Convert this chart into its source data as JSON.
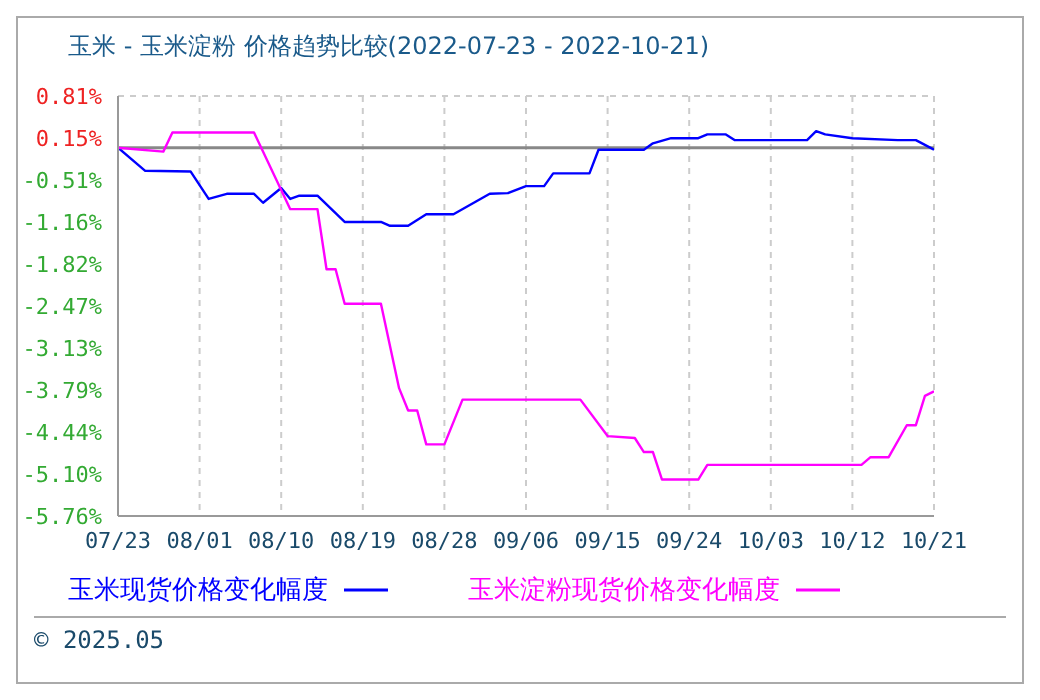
{
  "chart_data": {
    "type": "line",
    "title": "玉米 - 玉米淀粉 价格趋势比较(2022-07-23 - 2022-10-21)",
    "xlim": [
      "2022-07-23",
      "2022-10-21"
    ],
    "xticks": [
      {
        "value": "2022-07-23",
        "label": "07/23"
      },
      {
        "value": "2022-08-01",
        "label": "08/01"
      },
      {
        "value": "2022-08-10",
        "label": "08/10"
      },
      {
        "value": "2022-08-19",
        "label": "08/19"
      },
      {
        "value": "2022-08-28",
        "label": "08/28"
      },
      {
        "value": "2022-09-06",
        "label": "09/06"
      },
      {
        "value": "2022-09-15",
        "label": "09/15"
      },
      {
        "value": "2022-09-24",
        "label": "09/24"
      },
      {
        "value": "2022-10-03",
        "label": "10/03"
      },
      {
        "value": "2022-10-12",
        "label": "10/12"
      },
      {
        "value": "2022-10-21",
        "label": "10/21"
      }
    ],
    "ylim": [
      -5.76,
      0.81
    ],
    "yticks": [
      {
        "value": 0.81,
        "label": "0.81%"
      },
      {
        "value": 0.15,
        "label": "0.15%"
      },
      {
        "value": -0.51,
        "label": "-0.51%"
      },
      {
        "value": -1.16,
        "label": "-1.16%"
      },
      {
        "value": -1.82,
        "label": "-1.82%"
      },
      {
        "value": -2.47,
        "label": "-2.47%"
      },
      {
        "value": -3.13,
        "label": "-3.13%"
      },
      {
        "value": -3.79,
        "label": "-3.79%"
      },
      {
        "value": -4.44,
        "label": "-4.44%"
      },
      {
        "value": -5.1,
        "label": "-5.10%"
      },
      {
        "value": -5.76,
        "label": "-5.76%"
      }
    ],
    "grid": true,
    "legend": "bottom",
    "marker": "none",
    "line_style": "solid",
    "ref_lines": [
      {
        "axis": "y",
        "value": 0,
        "color": "#888888"
      }
    ],
    "annotations": [
      "© 2025.05"
    ],
    "series": [
      {
        "name": "玉米现货价格变化幅度",
        "color": "#0000ff",
        "x": [
          "2022-07-23",
          "2022-07-26",
          "2022-07-31",
          "2022-08-02",
          "2022-08-04",
          "2022-08-07",
          "2022-08-08",
          "2022-08-10",
          "2022-08-11",
          "2022-08-12",
          "2022-08-14",
          "2022-08-17",
          "2022-08-21",
          "2022-08-22",
          "2022-08-24",
          "2022-08-26",
          "2022-08-29",
          "2022-09-02",
          "2022-09-04",
          "2022-09-06",
          "2022-09-08",
          "2022-09-09",
          "2022-09-13",
          "2022-09-14",
          "2022-09-19",
          "2022-09-20",
          "2022-09-22",
          "2022-09-25",
          "2022-09-26",
          "2022-09-28",
          "2022-09-29",
          "2022-10-07",
          "2022-10-08",
          "2022-10-09",
          "2022-10-12",
          "2022-10-17",
          "2022-10-19",
          "2022-10-21"
        ],
        "values": [
          0,
          -0.36,
          -0.37,
          -0.8,
          -0.72,
          -0.72,
          -0.86,
          -0.63,
          -0.8,
          -0.75,
          -0.75,
          -1.16,
          -1.16,
          -1.22,
          -1.22,
          -1.04,
          -1.04,
          -0.72,
          -0.71,
          -0.6,
          -0.6,
          -0.4,
          -0.4,
          -0.03,
          -0.03,
          0.07,
          0.15,
          0.15,
          0.21,
          0.21,
          0.12,
          0.12,
          0.26,
          0.21,
          0.15,
          0.12,
          0.12,
          -0.03
        ]
      },
      {
        "name": "玉米淀粉现货价格变化幅度",
        "color": "#ff00ff",
        "x": [
          "2022-07-23",
          "2022-07-28",
          "2022-07-29",
          "2022-08-07",
          "2022-08-11",
          "2022-08-14",
          "2022-08-15",
          "2022-08-16",
          "2022-08-17",
          "2022-08-21",
          "2022-08-23",
          "2022-08-24",
          "2022-08-25",
          "2022-08-26",
          "2022-08-28",
          "2022-08-30",
          "2022-09-12",
          "2022-09-15",
          "2022-09-18",
          "2022-09-19",
          "2022-09-20",
          "2022-09-21",
          "2022-09-25",
          "2022-09-26",
          "2022-10-13",
          "2022-10-14",
          "2022-10-16",
          "2022-10-18",
          "2022-10-19",
          "2022-10-20",
          "2022-10-21"
        ],
        "values": [
          0,
          -0.06,
          0.24,
          0.24,
          -0.96,
          -0.96,
          -1.9,
          -1.9,
          -2.44,
          -2.44,
          -3.76,
          -4.11,
          -4.11,
          -4.64,
          -4.64,
          -3.94,
          -3.94,
          -4.51,
          -4.54,
          -4.76,
          -4.76,
          -5.19,
          -5.19,
          -4.96,
          -4.96,
          -4.84,
          -4.84,
          -4.34,
          -4.34,
          -3.88,
          -3.81
        ]
      }
    ]
  }
}
